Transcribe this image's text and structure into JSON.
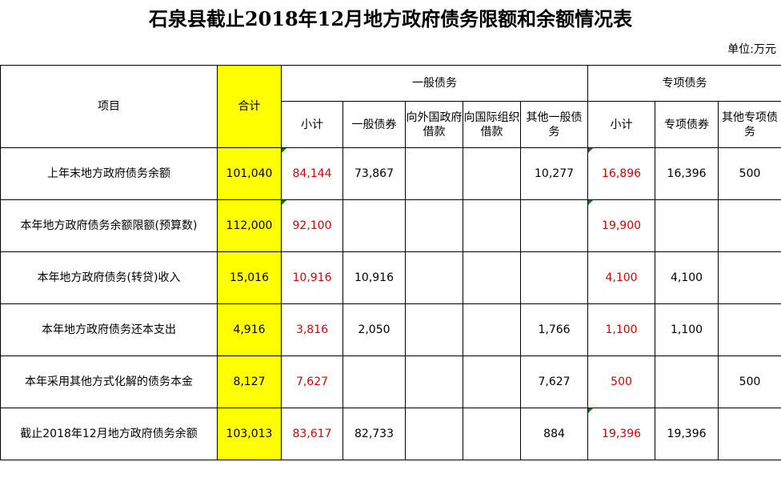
{
  "title": "石泉县截止2018年12月地方政府债务限额和余额情况表",
  "unit": "单位:万元",
  "headers": {
    "item": "项目",
    "total": "合计",
    "general_group": "一般债务",
    "special_group": "专项债务",
    "general_subtotal": "小计",
    "general_bond": "一般债券",
    "foreign_gov_loan": "向外国政府借款",
    "intl_org_loan": "向国际组织借款",
    "other_general": "其他一般债务",
    "special_subtotal": "小计",
    "special_bond": "专项债券",
    "other_special": "其他专项债务"
  },
  "rows": [
    {
      "item": "上年末地方政府债务余额",
      "total": "101,040",
      "g_sub": "84,144",
      "g_bond": "73,867",
      "g_foreign": "",
      "g_intl": "",
      "g_other": "10,277",
      "s_sub": "16,896",
      "s_bond": "16,396",
      "s_other": "500"
    },
    {
      "item": "本年地方政府债务余额限额(预算数)",
      "total": "112,000",
      "g_sub": "92,100",
      "g_bond": "",
      "g_foreign": "",
      "g_intl": "",
      "g_other": "",
      "s_sub": "19,900",
      "s_bond": "",
      "s_other": ""
    },
    {
      "item": "本年地方政府债务(转贷)收入",
      "total": "15,016",
      "g_sub": "10,916",
      "g_bond": "10,916",
      "g_foreign": "",
      "g_intl": "",
      "g_other": "",
      "s_sub": "4,100",
      "s_bond": "4,100",
      "s_other": ""
    },
    {
      "item": "本年地方政府债务还本支出",
      "total": "4,916",
      "g_sub": "3,816",
      "g_bond": "2,050",
      "g_foreign": "",
      "g_intl": "",
      "g_other": "1,766",
      "s_sub": "1,100",
      "s_bond": "1,100",
      "s_other": ""
    },
    {
      "item": "本年采用其他方式化解的债务本金",
      "total": "8,127",
      "g_sub": "7,627",
      "g_bond": "",
      "g_foreign": "",
      "g_intl": "",
      "g_other": "7,627",
      "s_sub": "500",
      "s_bond": "",
      "s_other": "500"
    },
    {
      "item": "截止2018年12月地方政府债务余额",
      "total": "103,013",
      "g_sub": "83,617",
      "g_bond": "82,733",
      "g_foreign": "",
      "g_intl": "",
      "g_other": "884",
      "s_sub": "19,396",
      "s_bond": "19,396",
      "s_other": ""
    }
  ],
  "colors": {
    "highlight": "#ffff00",
    "red_text": "#e00000",
    "marker": "#008000"
  }
}
